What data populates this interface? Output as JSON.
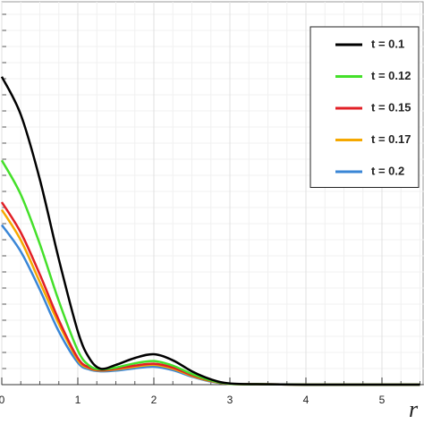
{
  "chart_data": {
    "type": "line",
    "x_label": "r",
    "x": [
      0,
      0.25,
      0.5,
      0.75,
      1,
      1.15,
      1.3,
      1.5,
      1.75,
      2,
      2.25,
      2.5,
      2.75,
      3,
      3.5,
      4,
      4.5,
      5,
      5.5
    ],
    "series": [
      {
        "name": "t = 0.1",
        "color": "#000000",
        "values": [
          0.81,
          0.71,
          0.54,
          0.33,
          0.14,
          0.07,
          0.042,
          0.052,
          0.07,
          0.08,
          0.064,
          0.035,
          0.014,
          0.003,
          0.001,
          0,
          0,
          0,
          0
        ]
      },
      {
        "name": "t = 0.12",
        "color": "#44e02a",
        "values": [
          0.59,
          0.5,
          0.37,
          0.22,
          0.09,
          0.05,
          0.04,
          0.045,
          0.056,
          0.062,
          0.05,
          0.028,
          0.011,
          0.002,
          0.001,
          0,
          0,
          0,
          0
        ]
      },
      {
        "name": "t = 0.15",
        "color": "#e21f26",
        "values": [
          0.48,
          0.4,
          0.29,
          0.17,
          0.07,
          0.045,
          0.038,
          0.042,
          0.05,
          0.055,
          0.045,
          0.025,
          0.01,
          0.002,
          0.001,
          0,
          0,
          0,
          0
        ]
      },
      {
        "name": "t = 0.17",
        "color": "#f5a800",
        "values": [
          0.46,
          0.38,
          0.27,
          0.16,
          0.065,
          0.043,
          0.037,
          0.04,
          0.047,
          0.052,
          0.042,
          0.023,
          0.009,
          0.002,
          0.001,
          0,
          0,
          0,
          0
        ]
      },
      {
        "name": "t = 0.2",
        "color": "#3a86d6",
        "values": [
          0.42,
          0.35,
          0.25,
          0.14,
          0.058,
          0.04,
          0.035,
          0.037,
          0.043,
          0.047,
          0.038,
          0.021,
          0.008,
          0.002,
          0.001,
          0,
          0,
          0,
          0
        ]
      }
    ],
    "xlim": [
      0,
      5.55
    ],
    "ylim": [
      0,
      1
    ],
    "xticks": [
      0,
      1,
      2,
      3,
      4,
      5
    ],
    "grid": true,
    "legend": "upper right"
  }
}
